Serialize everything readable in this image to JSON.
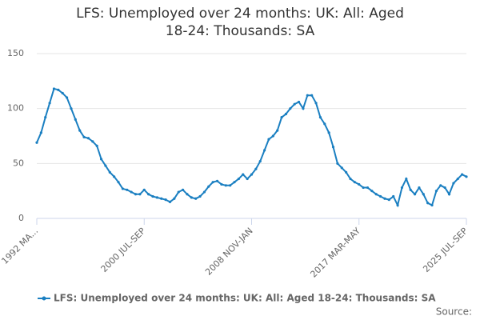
{
  "chart_data": {
    "type": "line",
    "title": "LFS: Unemployed over 24 months: UK: All: Aged 18-24: Thousands: SA",
    "categories": [
      "1992 MA...",
      null,
      null,
      null,
      null,
      null,
      null,
      null,
      null,
      null,
      null,
      null,
      null,
      null,
      null,
      null,
      null,
      null,
      null,
      null,
      null,
      null,
      null,
      null,
      null,
      "2000 JUL-SEP",
      null,
      null,
      null,
      null,
      null,
      null,
      null,
      null,
      null,
      null,
      null,
      null,
      null,
      null,
      null,
      null,
      null,
      null,
      null,
      null,
      null,
      null,
      null,
      null,
      "2008 NOV-JAN",
      null,
      null,
      null,
      null,
      null,
      null,
      null,
      null,
      null,
      null,
      null,
      null,
      null,
      null,
      null,
      null,
      null,
      null,
      null,
      null,
      null,
      null,
      null,
      null,
      "2017 MAR-MAY",
      null,
      null,
      null,
      null,
      null,
      null,
      null,
      null,
      null,
      null,
      null,
      null,
      null,
      null,
      null,
      null,
      null,
      null,
      null,
      null,
      null,
      null,
      null,
      null,
      "2025 JUL-SEP"
    ],
    "series": [
      {
        "name": "LFS: Unemployed over 24 months: UK: All: Aged 18-24: Thousands: SA",
        "color": "#1a7fc1",
        "values": [
          69,
          78,
          92,
          105,
          118,
          117,
          114,
          110,
          100,
          90,
          80,
          74,
          73,
          70,
          66,
          54,
          48,
          42,
          38,
          33,
          27,
          26,
          24,
          22,
          22,
          26,
          22,
          20,
          19,
          18,
          17,
          15,
          18,
          24,
          26,
          22,
          19,
          18,
          20,
          24,
          29,
          33,
          34,
          31,
          30,
          30,
          33,
          36,
          40,
          36,
          40,
          45,
          52,
          62,
          72,
          75,
          80,
          92,
          95,
          100,
          104,
          106,
          100,
          112,
          112,
          105,
          92,
          86,
          78,
          65,
          50,
          46,
          42,
          36,
          33,
          31,
          28,
          28,
          25,
          22,
          20,
          18,
          17,
          20,
          12,
          28,
          36,
          26,
          22,
          28,
          22,
          14,
          12,
          25,
          30,
          28,
          22,
          32,
          36,
          40,
          38
        ]
      }
    ],
    "ylim": [
      0,
      150
    ],
    "yticks": [
      0,
      50,
      100,
      150
    ],
    "grid": true,
    "source_label": "Source:"
  }
}
